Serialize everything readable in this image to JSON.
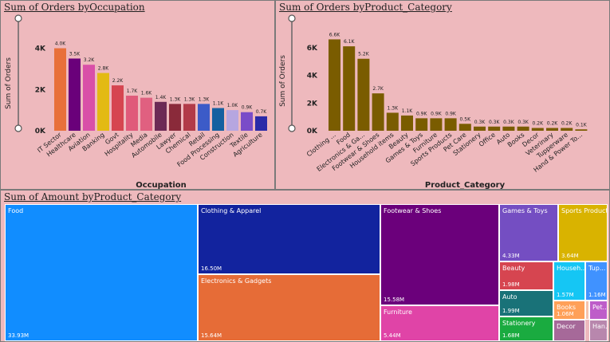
{
  "charts": {
    "occupation": {
      "title": "Sum of Orders byOccupation",
      "xlabel": "Occupation",
      "ylabel": "Sum of Orders"
    },
    "product": {
      "title": "Sum of Orders byProduct_Category",
      "xlabel": "Product_Category",
      "ylabel": "Sum of Orders"
    },
    "treemap": {
      "title": "Sum of Amount byProduct_Category"
    }
  },
  "chart_data": [
    {
      "type": "bar",
      "title": "Sum of Orders byOccupation",
      "xlabel": "Occupation",
      "ylabel": "Sum of Orders",
      "ylim": [
        0,
        4600
      ],
      "yticks": [
        0,
        2000,
        4000
      ],
      "ytick_labels": [
        "0K",
        "2K",
        "4K"
      ],
      "categories": [
        "IT Sector",
        "Healthcare",
        "Aviation",
        "Banking",
        "Govt",
        "Hospitality",
        "Media",
        "Automobile",
        "Lawyer",
        "Chemical",
        "Retail",
        "Food Processing",
        "Construction",
        "Textile",
        "Agriculture"
      ],
      "values": [
        4000,
        3500,
        3200,
        2800,
        2200,
        1700,
        1600,
        1400,
        1300,
        1300,
        1300,
        1100,
        1000,
        900,
        700
      ],
      "data_labels": [
        "4.0K",
        "3.5K",
        "3.2K",
        "2.8K",
        "2.2K",
        "1.7K",
        "1.6K",
        "1.4K",
        "1.3K",
        "1.3K",
        "1.3K",
        "1.1K",
        "1.0K",
        "0.9K",
        "0.7K"
      ],
      "colors": [
        "#e8703a",
        "#6a007a",
        "#d94fa8",
        "#e3ba13",
        "#d64550",
        "#e05a7a",
        "#e06080",
        "#6c2a55",
        "#8a2a3a",
        "#b23a48",
        "#3c5bc8",
        "#1560a0",
        "#b6a6e0",
        "#7a4cc8",
        "#2a2aa8"
      ]
    },
    {
      "type": "bar",
      "title": "Sum of Orders byProduct_Category",
      "xlabel": "Product_Category",
      "ylabel": "Sum of Orders",
      "ylim": [
        0,
        7200
      ],
      "yticks": [
        0,
        2000,
        4000,
        6000
      ],
      "ytick_labels": [
        "0K",
        "2K",
        "4K",
        "6K"
      ],
      "categories": [
        "Clothing ...",
        "Food",
        "Electronics & Ga...",
        "Footwear & Shoes",
        "Household items",
        "Beauty",
        "Games & Toys",
        "Furniture",
        "Sports Products",
        "Pet Care",
        "Stationery",
        "Office",
        "Auto",
        "Books",
        "Decor",
        "Veterinary",
        "Tupperware",
        "Hand & Power To..."
      ],
      "values": [
        6600,
        6100,
        5200,
        2700,
        1300,
        1100,
        900,
        900,
        900,
        500,
        300,
        300,
        300,
        300,
        200,
        200,
        200,
        100
      ],
      "data_labels": [
        "6.6K",
        "6.1K",
        "5.2K",
        "2.7K",
        "1.3K",
        "1.1K",
        "0.9K",
        "0.9K",
        "0.9K",
        "0.5K",
        "0.3K",
        "0.3K",
        "0.3K",
        "0.3K",
        "0.2K",
        "0.2K",
        "0.2K",
        "0.1K"
      ],
      "color": "#7a5c00"
    },
    {
      "type": "treemap",
      "title": "Sum of Amount byProduct_Category",
      "items": [
        {
          "name": "Food",
          "value_label": "33.93M",
          "color": "#118dff"
        },
        {
          "name": "Clothing & Apparel",
          "value_label": "16.50M",
          "color": "#12239e"
        },
        {
          "name": "Electronics & Gadgets",
          "value_label": "15.64M",
          "color": "#e66c37"
        },
        {
          "name": "Footwear & Shoes",
          "value_label": "15.58M",
          "color": "#6b007b"
        },
        {
          "name": "Furniture",
          "value_label": "5.44M",
          "color": "#e044a7"
        },
        {
          "name": "Games & Toys",
          "value_label": "4.33M",
          "color": "#744ec2"
        },
        {
          "name": "Sports Products",
          "value_label": "3.64M",
          "color": "#d9b300"
        },
        {
          "name": "Beauty",
          "value_label": "1.98M",
          "color": "#d64550"
        },
        {
          "name": "Auto",
          "value_label": "1.99M",
          "color": "#197278"
        },
        {
          "name": "Stationery",
          "value_label": "1.68M",
          "color": "#1aab40"
        },
        {
          "name": "Househ...",
          "value_label": "1.57M",
          "color": "#15c6f4"
        },
        {
          "name": "Tup...",
          "value_label": "1.16M",
          "color": "#4092ff"
        },
        {
          "name": "Books",
          "value_label": "1.06M",
          "color": "#ffa058"
        },
        {
          "name": "Pet...",
          "value_label": "",
          "color": "#be5dc9"
        },
        {
          "name": "Decor",
          "value_label": "",
          "color": "#a66999"
        },
        {
          "name": "Han...",
          "value_label": "",
          "color": "#b887ad"
        },
        {
          "name": "",
          "value_label": "",
          "color": "#f5c4af"
        },
        {
          "name": "",
          "value_label": "",
          "color": "#ff6d8a"
        }
      ]
    }
  ]
}
